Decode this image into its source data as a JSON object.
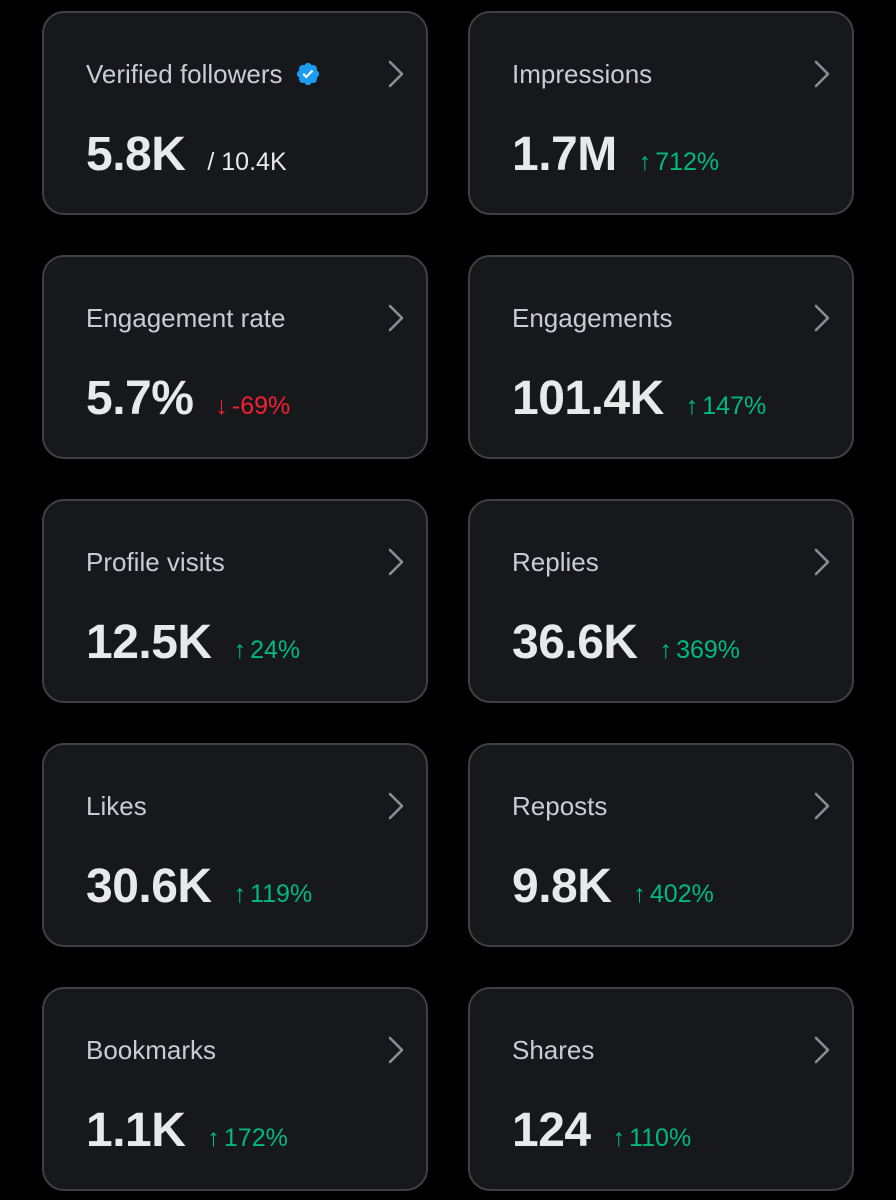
{
  "colors": {
    "background": "#000000",
    "card": "#16181c",
    "card_border": "#3e4144",
    "title": "#c9cdd1",
    "value": "#e7e9ea",
    "up": "#00ba7c",
    "down": "#f4212e",
    "verified": "#1d9bf0",
    "chevron": "#8b8f93"
  },
  "cards": [
    {
      "title": "Verified followers",
      "icon": "verified-badge-icon",
      "value": "5.8K",
      "suffix": "/ 10.4K"
    },
    {
      "title": "Impressions",
      "value": "1.7M",
      "direction": "up",
      "arrow": "↑",
      "change": "712%"
    },
    {
      "title": "Engagement rate",
      "value": "5.7%",
      "direction": "down",
      "arrow": "↓",
      "change": "-69%"
    },
    {
      "title": "Engagements",
      "value": "101.4K",
      "direction": "up",
      "arrow": "↑",
      "change": "147%"
    },
    {
      "title": "Profile visits",
      "value": "12.5K",
      "direction": "up",
      "arrow": "↑",
      "change": "24%"
    },
    {
      "title": "Replies",
      "value": "36.6K",
      "direction": "up",
      "arrow": "↑",
      "change": "369%"
    },
    {
      "title": "Likes",
      "value": "30.6K",
      "direction": "up",
      "arrow": "↑",
      "change": "119%"
    },
    {
      "title": "Reposts",
      "value": "9.8K",
      "direction": "up",
      "arrow": "↑",
      "change": "402%"
    },
    {
      "title": "Bookmarks",
      "value": "1.1K",
      "direction": "up",
      "arrow": "↑",
      "change": "172%"
    },
    {
      "title": "Shares",
      "value": "124",
      "direction": "up",
      "arrow": "↑",
      "change": "110%"
    }
  ]
}
